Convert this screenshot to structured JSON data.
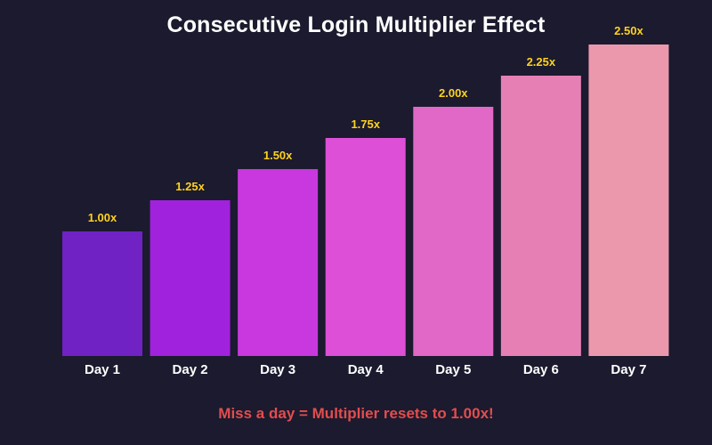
{
  "chart_data": {
    "type": "bar",
    "title": "Consecutive Login Multiplier Effect",
    "xlabel": "",
    "ylabel": "",
    "categories": [
      "Day 1",
      "Day 2",
      "Day 3",
      "Day 4",
      "Day 5",
      "Day 6",
      "Day 7"
    ],
    "values": [
      1.0,
      1.25,
      1.5,
      1.75,
      2.0,
      2.25,
      2.5
    ],
    "value_labels": [
      "1.00x",
      "1.25x",
      "1.50x",
      "1.75x",
      "2.00x",
      "2.25x",
      "2.50x"
    ],
    "ylim": [
      0,
      2.5
    ],
    "grid": false,
    "legend": "none",
    "bar_colors": [
      "#7022c4",
      "#a122dc",
      "#c838de",
      "#dc4fd6",
      "#e168c6",
      "#e680b4",
      "#ec98ac"
    ],
    "annotation": "Miss a day = Multiplier resets to 1.00x!"
  },
  "colors": {
    "background": "#1b1a2e",
    "title": "#ffffff",
    "value_label": "#ffd21f",
    "tick_label": "#ffffff",
    "annotation": "#e34d4d"
  }
}
